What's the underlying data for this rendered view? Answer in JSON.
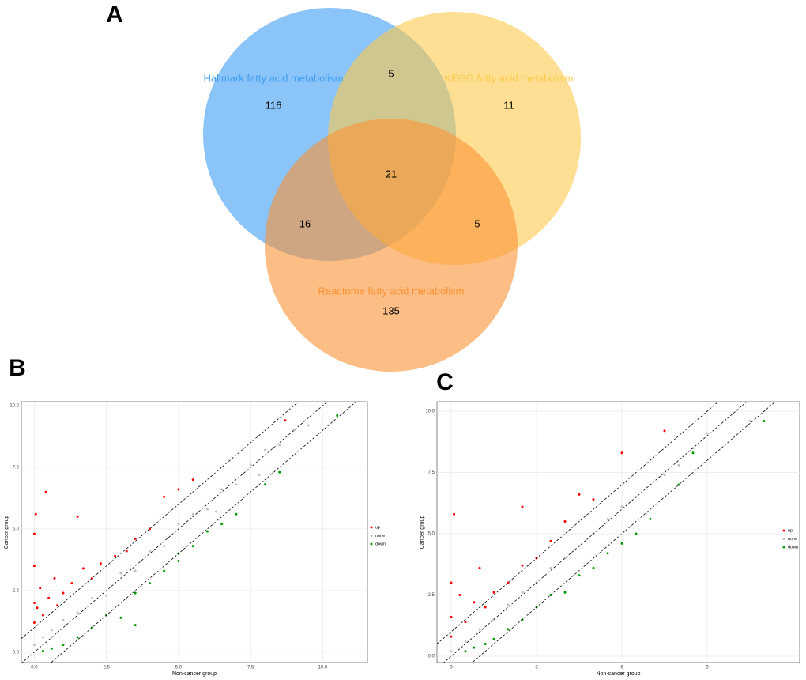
{
  "chart_data": [
    {
      "type": "venn",
      "panel_label": "A",
      "sets": [
        {
          "name": "Hallmark fatty acid metabolism",
          "color": "#3d9df3"
        },
        {
          "name": "KEGG fatty acid metabolism",
          "color": "#fdc94b"
        },
        {
          "name": "Reactome fatty acid metabolism",
          "color": "#fb9233"
        }
      ],
      "regions": [
        {
          "sets": [
            0
          ],
          "value": 116
        },
        {
          "sets": [
            1
          ],
          "value": 11
        },
        {
          "sets": [
            2
          ],
          "value": 135
        },
        {
          "sets": [
            0,
            1
          ],
          "value": 5
        },
        {
          "sets": [
            0,
            2
          ],
          "value": 16
        },
        {
          "sets": [
            1,
            2
          ],
          "value": 5
        },
        {
          "sets": [
            0,
            1,
            2
          ],
          "value": 21
        }
      ]
    },
    {
      "type": "scatter",
      "panel_label": "B",
      "x_label": "Non-cancer group",
      "y_label": "Cancer group",
      "xlim": [
        -0.45,
        11.55
      ],
      "ylim": [
        -0.42,
        10.16
      ],
      "xticks": [
        {
          "value": 0,
          "label": "0.0"
        },
        2.5,
        {
          "value": 5,
          "label": "5.0"
        },
        7.5,
        {
          "value": 10,
          "label": "10.0"
        }
      ],
      "yticks": [
        {
          "value": 0,
          "label": "0.0"
        },
        2.5,
        {
          "value": 5,
          "label": "5.0"
        },
        7.5,
        {
          "value": 10,
          "label": "10.0"
        }
      ],
      "grid": true,
      "reference_lines": [
        {
          "slope": 1,
          "intercept": -1
        },
        {
          "slope": 1,
          "intercept": 0
        },
        {
          "slope": 1,
          "intercept": 1
        }
      ],
      "series": [
        {
          "name": "up",
          "color": "#ff0000",
          "x": [
            0,
            0,
            0,
            0,
            0.05,
            0.1,
            0.2,
            0.3,
            0.5,
            0.7,
            0.8,
            1.0,
            1.3,
            1.5,
            1.7,
            2.0,
            2.3,
            2.8,
            3.2,
            3.5,
            4.0,
            4.5,
            5.0,
            5.5,
            8.7,
            0.4
          ],
          "y": [
            1.2,
            2.0,
            3.5,
            4.8,
            5.6,
            1.8,
            2.6,
            1.5,
            2.2,
            3.0,
            1.9,
            2.4,
            2.8,
            5.5,
            3.4,
            3.0,
            3.6,
            3.9,
            4.1,
            4.6,
            5.0,
            6.3,
            6.6,
            7.0,
            9.4,
            6.5
          ]
        },
        {
          "name": "none",
          "color": "#bebebe",
          "x": [
            0,
            0.3,
            0.6,
            1,
            1.5,
            2,
            2.5,
            3,
            3.5,
            4,
            4.5,
            5,
            5.5,
            6,
            6.5,
            7,
            7.5,
            8,
            8.5,
            9,
            9.5,
            7.8,
            6.3
          ],
          "y": [
            0.3,
            0.6,
            0.9,
            1.3,
            1.6,
            2.2,
            2.3,
            3.2,
            3.3,
            4.1,
            4.3,
            5.2,
            5.6,
            5.8,
            6.6,
            6.8,
            7.6,
            8.2,
            8.4,
            9.0,
            9.2,
            7.2,
            5.7
          ]
        },
        {
          "name": "down",
          "color": "#009900",
          "x": [
            0.3,
            0.6,
            1,
            1.5,
            2,
            2.5,
            3,
            3.5,
            4,
            4.5,
            5,
            5.5,
            6,
            6.5,
            7,
            8,
            8.5,
            10.5,
            3.5,
            5
          ],
          "y": [
            0.05,
            0.15,
            0.3,
            0.6,
            1.0,
            1.5,
            1.4,
            2.4,
            2.8,
            3.3,
            3.7,
            4.3,
            4.9,
            5.2,
            5.6,
            6.8,
            7.3,
            9.6,
            1.1,
            4.0
          ]
        }
      ]
    },
    {
      "type": "scatter",
      "panel_label": "C",
      "x_label": "Non-cancer group",
      "y_label": "Cancer group",
      "xlim": [
        -0.5,
        12.25
      ],
      "ylim": [
        -0.26,
        10.39
      ],
      "xticks": [
        0,
        3,
        6,
        9
      ],
      "yticks": [
        {
          "value": 0,
          "label": "0.0"
        },
        2.5,
        {
          "value": 5,
          "label": "5.0"
        },
        7.5,
        {
          "value": 10,
          "label": "10.0"
        }
      ],
      "grid": true,
      "reference_lines": [
        {
          "slope": 1,
          "intercept": -1
        },
        {
          "slope": 1,
          "intercept": 0
        },
        {
          "slope": 1,
          "intercept": 1
        }
      ],
      "series": [
        {
          "name": "up",
          "color": "#ff0000",
          "x": [
            0,
            0,
            0,
            0.1,
            0.3,
            0.5,
            0.8,
            1,
            1.2,
            1.5,
            2,
            2.5,
            2.5,
            3,
            3.5,
            4,
            4.5,
            5,
            6,
            7.5
          ],
          "y": [
            0.8,
            1.6,
            3.0,
            5.8,
            2.5,
            1.4,
            2.2,
            3.6,
            2.0,
            2.6,
            3.0,
            3.7,
            6.1,
            4.0,
            4.7,
            5.5,
            6.6,
            6.4,
            8.3,
            9.2
          ]
        },
        {
          "name": "none",
          "color": "#bebebe",
          "x": [
            0,
            0.5,
            1,
            1.5,
            2,
            2.5,
            3,
            3.5,
            4,
            4.5,
            5,
            5.5,
            6,
            6.5,
            7,
            7.5,
            8,
            8.5,
            9,
            10.5
          ],
          "y": [
            0.2,
            0.6,
            1.1,
            1.5,
            2.1,
            2.6,
            3.0,
            3.6,
            4.0,
            4.5,
            5.0,
            5.6,
            6.1,
            6.5,
            7.0,
            7.4,
            7.8,
            8.5,
            9.1,
            9.6
          ]
        },
        {
          "name": "down",
          "color": "#009900",
          "x": [
            0.5,
            0.8,
            1.2,
            1.5,
            2,
            2.5,
            3,
            3.5,
            4,
            4.5,
            5,
            5.5,
            6,
            6.5,
            7,
            8,
            8.5,
            11
          ],
          "y": [
            0.2,
            0.35,
            0.5,
            0.7,
            1.1,
            1.5,
            2.0,
            2.5,
            2.6,
            3.3,
            3.6,
            4.2,
            4.6,
            5.0,
            5.6,
            7.0,
            8.3,
            9.6
          ]
        }
      ]
    }
  ]
}
